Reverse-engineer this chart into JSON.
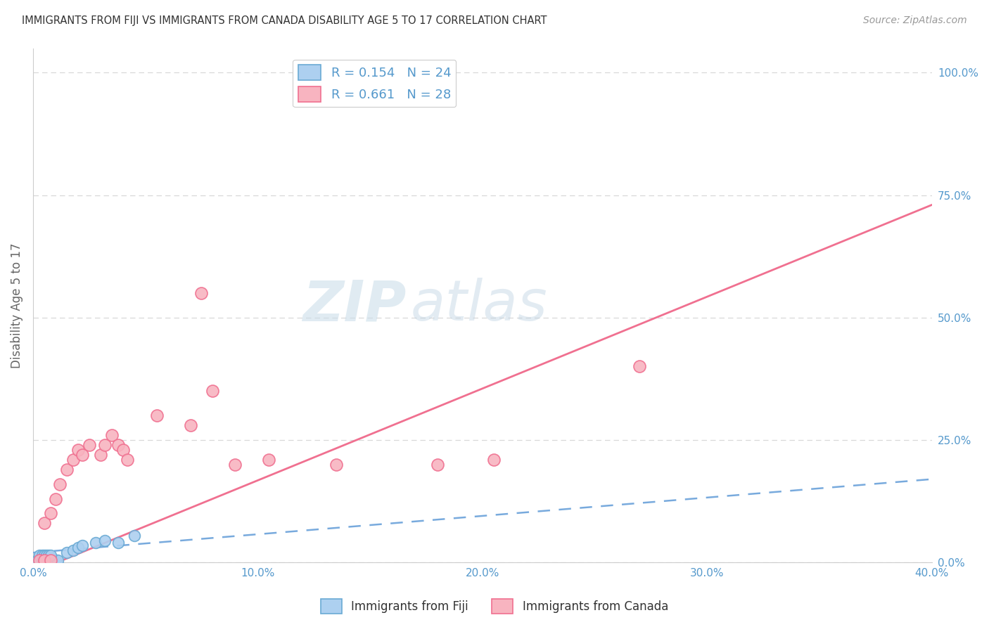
{
  "title": "IMMIGRANTS FROM FIJI VS IMMIGRANTS FROM CANADA DISABILITY AGE 5 TO 17 CORRELATION CHART",
  "source": "Source: ZipAtlas.com",
  "ylabel": "Disability Age 5 to 17",
  "fiji_R": 0.154,
  "fiji_N": 24,
  "canada_R": 0.661,
  "canada_N": 28,
  "fiji_color": "#add0f0",
  "canada_color": "#f8b4c0",
  "fiji_edge_color": "#6aaad4",
  "canada_edge_color": "#f07090",
  "fiji_line_color": "#78aadd",
  "canada_line_color": "#f07090",
  "fiji_scatter_x": [
    0.2,
    0.3,
    0.4,
    0.5,
    0.6,
    0.7,
    0.8,
    0.9,
    1.0,
    1.1,
    0.3,
    0.4,
    0.5,
    0.6,
    0.7,
    0.8,
    1.5,
    1.8,
    2.0,
    2.2,
    2.8,
    3.2,
    3.8,
    4.5
  ],
  "fiji_scatter_y": [
    0.5,
    0.5,
    0.5,
    0.5,
    0.5,
    0.5,
    0.5,
    0.5,
    0.5,
    0.5,
    1.5,
    1.5,
    1.5,
    1.5,
    1.5,
    1.5,
    2.0,
    2.5,
    3.0,
    3.5,
    4.0,
    4.5,
    4.0,
    5.5
  ],
  "canada_scatter_x": [
    0.5,
    0.8,
    1.0,
    1.2,
    1.5,
    1.8,
    2.0,
    2.2,
    2.5,
    3.0,
    3.2,
    3.5,
    3.8,
    4.0,
    4.2,
    5.5,
    7.0,
    8.0,
    9.0,
    10.5,
    18.0,
    20.5,
    27.0,
    7.5,
    13.5,
    0.3,
    0.5,
    0.8
  ],
  "canada_scatter_y": [
    8.0,
    10.0,
    13.0,
    16.0,
    19.0,
    21.0,
    23.0,
    22.0,
    24.0,
    22.0,
    24.0,
    26.0,
    24.0,
    23.0,
    21.0,
    30.0,
    28.0,
    35.0,
    20.0,
    21.0,
    20.0,
    21.0,
    40.0,
    55.0,
    20.0,
    0.5,
    0.5,
    0.5
  ],
  "xlim": [
    0.0,
    40.0
  ],
  "ylim": [
    0.0,
    105.0
  ],
  "xtick_vals": [
    0.0,
    5.0,
    10.0,
    15.0,
    20.0,
    25.0,
    30.0,
    35.0,
    40.0
  ],
  "xtick_labels": [
    "0.0%",
    "",
    "10.0%",
    "",
    "20.0%",
    "",
    "30.0%",
    "",
    "40.0%"
  ],
  "ytick_vals": [
    0.0,
    25.0,
    50.0,
    75.0,
    100.0
  ],
  "ytick_labels": [
    "0.0%",
    "25.0%",
    "50.0%",
    "75.0%",
    "100.0%"
  ],
  "watermark_zip": "ZIP",
  "watermark_atlas": "atlas",
  "background_color": "#ffffff",
  "grid_color": "#d8d8d8",
  "tick_color": "#5599cc",
  "axis_label_color": "#666666"
}
